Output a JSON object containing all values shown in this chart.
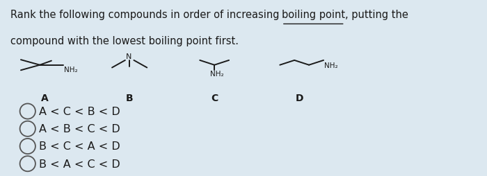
{
  "background_color": "#dce8f0",
  "title_part1": "Rank the following compounds in order of increasing ",
  "title_underline": "boiling point",
  "title_part3": ", putting the",
  "title_line2": "compound with the lowest boiling point first.",
  "options": [
    "A < C < B < D",
    "A < B < C < D",
    "B < C < A < D",
    "B < A < C < D"
  ],
  "compound_labels": [
    "A",
    "B",
    "C",
    "D"
  ],
  "text_color": "#1a1a1a",
  "font_size_title": 10.5,
  "font_size_options": 11.5,
  "font_size_labels": 10,
  "font_size_struct": 7.5
}
